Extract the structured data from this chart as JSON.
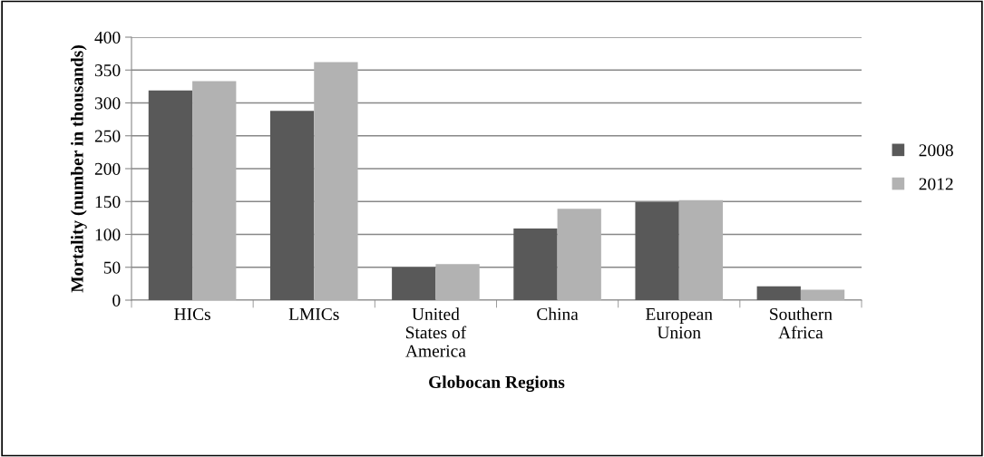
{
  "chart_data": {
    "type": "bar",
    "xlabel": "Globocan Regions",
    "ylabel": "Mortality (number in thousands)",
    "categories": [
      "HICs",
      "LMICs",
      "United\nStates of\nAmerica",
      "China",
      "European\nUnion",
      "Southern\nAfrica"
    ],
    "series": [
      {
        "name": "2008",
        "color": "#595959",
        "values": [
          319,
          288,
          50,
          109,
          149,
          21
        ]
      },
      {
        "name": "2012",
        "color": "#b2b2b2",
        "values": [
          333,
          362,
          55,
          139,
          152,
          16
        ]
      }
    ],
    "ylim": [
      0,
      400
    ],
    "yticks": [
      0,
      50,
      100,
      150,
      200,
      250,
      300,
      350,
      400
    ],
    "grid": "y",
    "legend": "right"
  }
}
